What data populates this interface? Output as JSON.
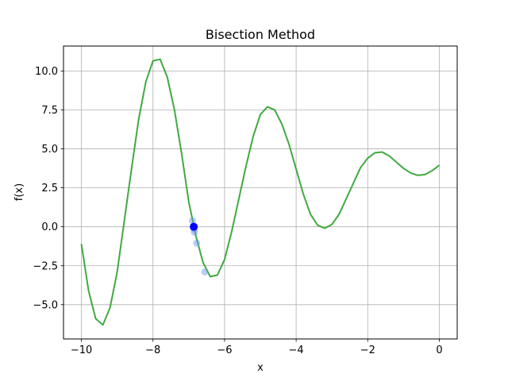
{
  "chart_data": {
    "type": "line",
    "title": "Bisection Method",
    "xlabel": "x",
    "ylabel": "f(x)",
    "xlim": [
      -10.5,
      0.5
    ],
    "ylim": [
      -7.2,
      11.6
    ],
    "x_ticks": [
      -10,
      -8,
      -6,
      -4,
      -2,
      0
    ],
    "x_tick_labels": [
      "−10",
      "−8",
      "−6",
      "−4",
      "−2",
      "0"
    ],
    "y_ticks": [
      -5.0,
      -2.5,
      0.0,
      2.5,
      5.0,
      7.5,
      10.0
    ],
    "y_tick_labels": [
      "−5.0",
      "−2.5",
      "0.0",
      "2.5",
      "5.0",
      "7.5",
      "10.0"
    ],
    "grid": true,
    "series": [
      {
        "color": "#2ca02c",
        "x": [
          -10.0,
          -9.8,
          -9.6,
          -9.4,
          -9.2,
          -9.0,
          -8.8,
          -8.6,
          -8.4,
          -8.2,
          -8.0,
          -7.8,
          -7.6,
          -7.4,
          -7.2,
          -7.0,
          -6.8,
          -6.6,
          -6.4,
          -6.2,
          -6.0,
          -5.8,
          -5.6,
          -5.4,
          -5.2,
          -5.0,
          -4.8,
          -4.6,
          -4.4,
          -4.2,
          -4.0,
          -3.8,
          -3.6,
          -3.4,
          -3.2,
          -3.0,
          -2.8,
          -2.6,
          -2.4,
          -2.2,
          -2.0,
          -1.8,
          -1.6,
          -1.4,
          -1.2,
          -1.0,
          -0.8,
          -0.6,
          -0.4,
          -0.2,
          0.0
        ],
        "y": [
          -1.1,
          -4.1,
          -5.9,
          -6.3,
          -5.2,
          -2.9,
          0.4,
          3.7,
          6.9,
          9.3,
          10.65,
          10.75,
          9.6,
          7.5,
          4.7,
          1.6,
          -0.6,
          -2.3,
          -3.2,
          -3.1,
          -2.1,
          -0.3,
          1.8,
          3.9,
          5.8,
          7.2,
          7.7,
          7.5,
          6.6,
          5.3,
          3.7,
          2.1,
          0.8,
          0.1,
          -0.1,
          0.15,
          0.8,
          1.8,
          2.8,
          3.8,
          4.4,
          4.75,
          4.8,
          4.55,
          4.15,
          3.75,
          3.45,
          3.3,
          3.35,
          3.6,
          3.95
        ]
      }
    ],
    "iterates": {
      "color": "#6495ed",
      "points": [
        {
          "x": -6.55,
          "y": -2.9
        },
        {
          "x": -6.78,
          "y": -1.05
        },
        {
          "x": -6.9,
          "y": 0.4
        },
        {
          "x": -6.84,
          "y": -0.35
        },
        {
          "x": -6.87,
          "y": 0.05
        },
        {
          "x": -6.855,
          "y": -0.15
        }
      ]
    },
    "root": {
      "x": -6.86,
      "y": 0.0,
      "color": "#0000ff"
    }
  }
}
